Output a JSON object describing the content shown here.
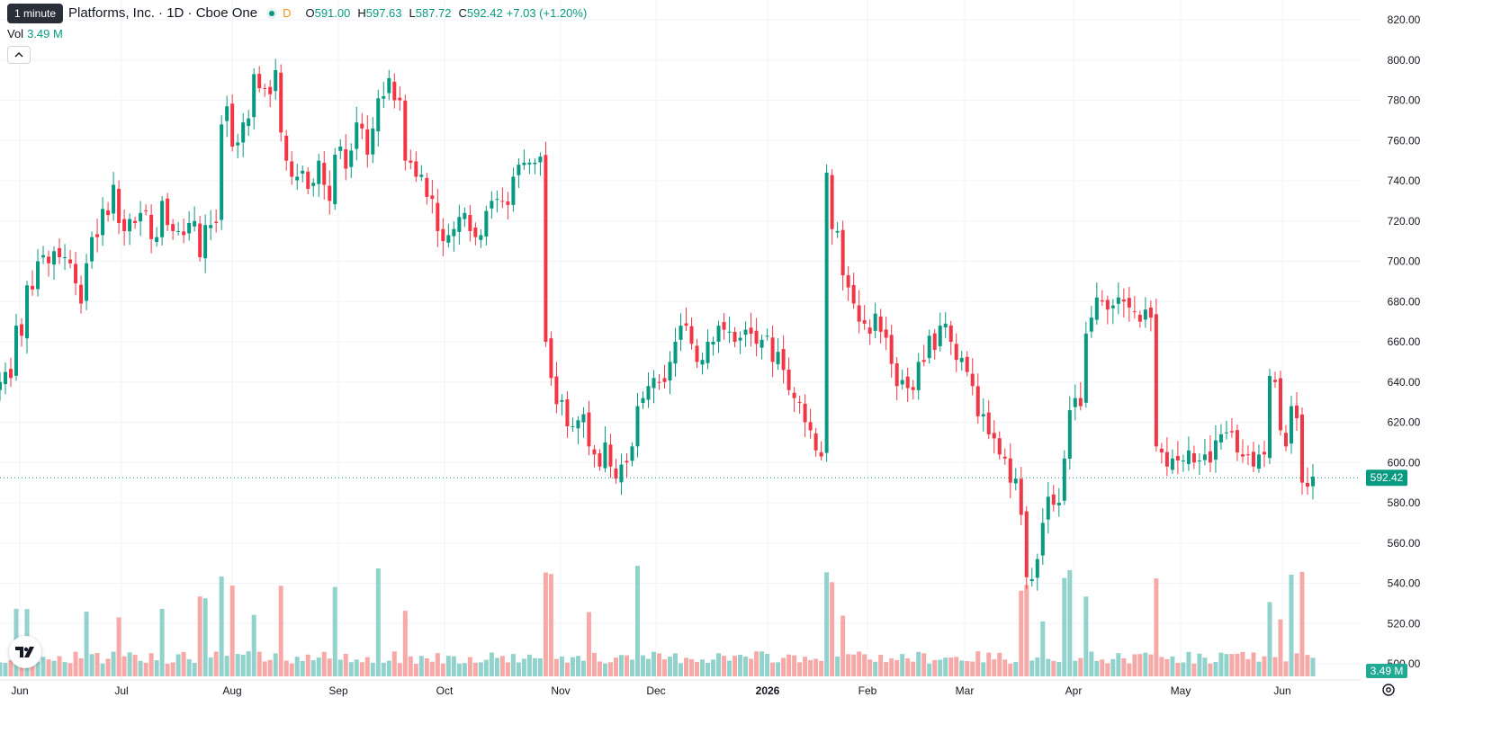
{
  "header": {
    "tooltip": "1 minute",
    "symbol_title": "Platforms, Inc. · 1D · Cboe One",
    "delayed_marker": "D",
    "ohlc": {
      "open_label": "O",
      "open": "591.00",
      "high_label": "H",
      "high": "597.63",
      "low_label": "L",
      "low": "587.72",
      "close_label": "C",
      "close": "592.42",
      "change": "+7.03 (+1.20%)"
    },
    "volume_label": "Vol",
    "volume_value": "3.49 M",
    "collapse_icon": "chevron-up-icon"
  },
  "colors": {
    "up": "#089981",
    "down": "#f23645",
    "up_volume": "#92d2cc",
    "down_volume": "#f7a9a7",
    "grid": "#f0f3fa",
    "price_line": "#089981"
  },
  "chart_data": {
    "type": "candlestick",
    "interval": "1D",
    "y_axis": {
      "ticks": [
        "820.00",
        "800.00",
        "780.00",
        "760.00",
        "740.00",
        "720.00",
        "700.00",
        "680.00",
        "660.00",
        "640.00",
        "620.00",
        "600.00",
        "580.00",
        "560.00",
        "540.00",
        "520.00",
        "500.00"
      ],
      "last_price_label": "592.42",
      "last_volume_label": "3.49 M"
    },
    "x_axis": {
      "ticks": [
        "Jun",
        "Jul",
        "Aug",
        "Sep",
        "Oct",
        "Nov",
        "Dec",
        "2026",
        "Feb",
        "Mar",
        "Apr",
        "May",
        "Jun"
      ],
      "bold_ticks": [
        "2026"
      ]
    },
    "grid": true,
    "price_series_closes": [
      640,
      645,
      642,
      668,
      663,
      688,
      686,
      700,
      703,
      699,
      705,
      702,
      702,
      699,
      689,
      679,
      699,
      712,
      712,
      726,
      723,
      738,
      719,
      715,
      721,
      719,
      724,
      725,
      711,
      712,
      730,
      718,
      715,
      715,
      713,
      719,
      720,
      702,
      718,
      718,
      719,
      768,
      777,
      757,
      759,
      769,
      771,
      793,
      786,
      786,
      783,
      795,
      764,
      750,
      742,
      742,
      745,
      736,
      739,
      750,
      738,
      730,
      753,
      757,
      746,
      755,
      769,
      766,
      753,
      766,
      781,
      782,
      791,
      780,
      780,
      750,
      749,
      742,
      743,
      732,
      731,
      715,
      710,
      713,
      716,
      722,
      724,
      715,
      712,
      713,
      725,
      730,
      731,
      730,
      728,
      742,
      748,
      749,
      749,
      749,
      752,
      660,
      642,
      629,
      631,
      618,
      618,
      621,
      624,
      608,
      604,
      598,
      610,
      598,
      592,
      599,
      600,
      608,
      628,
      632,
      638,
      642,
      640,
      640,
      650,
      660,
      668,
      668,
      659,
      650,
      651,
      660,
      660,
      668,
      666,
      665,
      660,
      662,
      666,
      664,
      659,
      661,
      663,
      650,
      655,
      646,
      636,
      632,
      630,
      620,
      616,
      606,
      603,
      744,
      716,
      715,
      693,
      687,
      679,
      670,
      669,
      664,
      674,
      665,
      662,
      649,
      638,
      641,
      637,
      636,
      650,
      650,
      663,
      656,
      668,
      669,
      660,
      651,
      652,
      645,
      638,
      623,
      624,
      614,
      612,
      604,
      602,
      590,
      592,
      574,
      543,
      542,
      552,
      570,
      583,
      579,
      580,
      602,
      626,
      632,
      628,
      664,
      672,
      682,
      680,
      676,
      678,
      682,
      680,
      677,
      675,
      670,
      676,
      672,
      608,
      605,
      598,
      602,
      601,
      601,
      606,
      600,
      601,
      604,
      600,
      611,
      614,
      615,
      615,
      605,
      603,
      604,
      598,
      604,
      604,
      643,
      640,
      616,
      608,
      628,
      622,
      590,
      588,
      593
    ],
    "summary": {
      "start_month": "Jun",
      "high_region": "about 790-795 in Aug-Sep",
      "low_region": "about 542 near Mar/Apr 2026",
      "last_close": 592.42
    }
  }
}
